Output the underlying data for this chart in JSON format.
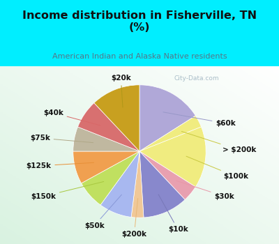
{
  "title": "Income distribution in Fisherville, TN\n(%)",
  "subtitle": "American Indian and Alaska Native residents",
  "title_color": "#111111",
  "subtitle_color": "#557788",
  "background_top": "#00eeff",
  "watermark": "City-Data.com",
  "labels": [
    "$60k",
    "> $200k",
    "$100k",
    "$30k",
    "$10k",
    "$200k",
    "$50k",
    "$150k",
    "$125k",
    "$75k",
    "$40k",
    "$20k"
  ],
  "values": [
    16,
    3,
    15,
    4,
    11,
    3,
    8,
    7,
    8,
    6,
    7,
    12
  ],
  "colors": [
    "#b0a8d8",
    "#f0ec80",
    "#f0ec80",
    "#e8a0b0",
    "#8888cc",
    "#f0c898",
    "#a8b8f0",
    "#c0e060",
    "#f0a050",
    "#c0b8a0",
    "#d87070",
    "#c8a020"
  ],
  "startangle": 90,
  "label_fontsize": 7.5,
  "title_fontsize": 11.5,
  "subtitle_fontsize": 8.0
}
